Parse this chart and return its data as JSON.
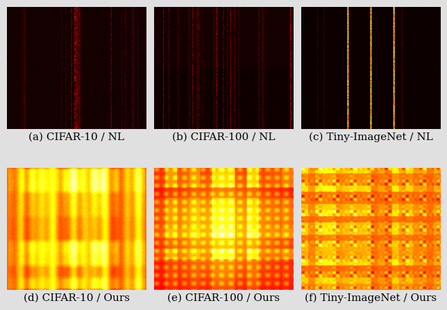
{
  "labels": [
    "(a) CIFAR-10 / NL",
    "(b) CIFAR-100 / NL",
    "(c) Tiny-ImageNet / NL",
    "(d) CIFAR-10 / Ours",
    "(e) CIFAR-100 / Ours",
    "(f) Tiny-ImageNet / Ours"
  ],
  "label_fontsize": 11,
  "fig_bg": "#e0e0e0",
  "n": 200,
  "seed": 7
}
